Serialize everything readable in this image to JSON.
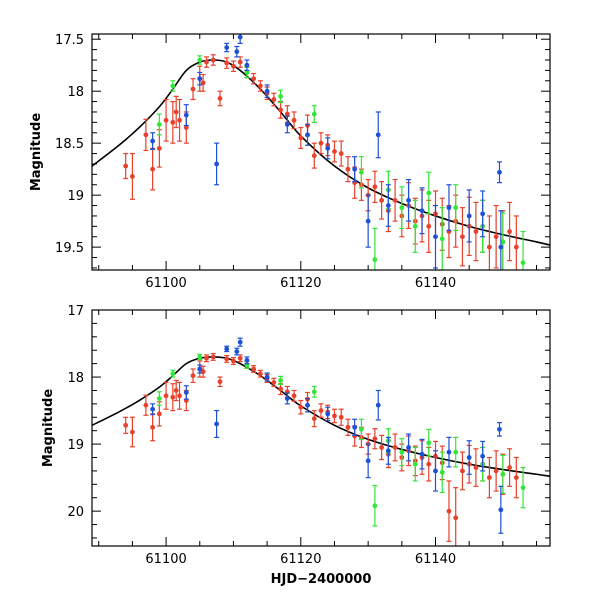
{
  "colors": {
    "red": "#e8412c",
    "green": "#33e63a",
    "blue": "#1f50d8",
    "model": "#000000"
  },
  "chart_data": [
    {
      "type": "scatter",
      "title": "",
      "xlabel": "",
      "ylabel": "Magnitude",
      "xlim": [
        61089,
        61157
      ],
      "ylim": [
        19.72,
        17.45
      ],
      "y_inverted": true,
      "xticks": [
        61100,
        61120,
        61140
      ],
      "xtick_labels": [
        "61100",
        "61120",
        "61140"
      ],
      "yticks": [
        17.5,
        18,
        18.5,
        19,
        19.5
      ],
      "ytick_labels": [
        "17.5",
        "18",
        "18.5",
        "19",
        "19.5"
      ],
      "model": {
        "name": "model fit",
        "x": [
          61089,
          61093,
          61096,
          61099,
          61101,
          61103,
          61105,
          61107,
          61109,
          61111,
          61114,
          61117,
          61120,
          61125,
          61130,
          61135,
          61140,
          61145,
          61150,
          61155,
          61157
        ],
        "y": [
          18.72,
          18.52,
          18.35,
          18.15,
          17.98,
          17.8,
          17.72,
          17.7,
          17.72,
          17.8,
          17.98,
          18.2,
          18.43,
          18.72,
          18.93,
          19.08,
          19.2,
          19.3,
          19.38,
          19.45,
          19.48
        ]
      },
      "series": [
        {
          "name": "red",
          "x": [
            61094,
            61095,
            61097,
            61098,
            61099,
            61100,
            61101,
            61101.5,
            61102,
            61103,
            61104,
            61105,
            61105.5,
            61106,
            61107,
            61108,
            61109,
            61110,
            61111,
            61112,
            61113,
            61114,
            61115,
            61116,
            61117,
            61118,
            61119,
            61120,
            61121,
            61122,
            61123,
            61124,
            61125,
            61126,
            61127,
            61128,
            61129,
            61130,
            61131,
            61132,
            61133,
            61134,
            61135,
            61136,
            61137,
            61138,
            61139,
            61140,
            61141,
            61142,
            61143,
            61144,
            61145,
            61146,
            61147,
            61148,
            61149,
            61150,
            61151,
            61152
          ],
          "y": [
            18.72,
            18.82,
            18.42,
            18.75,
            18.55,
            18.28,
            18.3,
            18.2,
            18.28,
            18.35,
            17.98,
            17.88,
            17.92,
            17.72,
            17.7,
            18.07,
            17.73,
            17.76,
            17.72,
            17.82,
            17.88,
            17.95,
            18.02,
            18.08,
            18.18,
            18.22,
            18.28,
            18.45,
            18.33,
            18.62,
            18.5,
            18.52,
            18.58,
            18.6,
            18.75,
            18.88,
            18.9,
            19.0,
            18.92,
            19.05,
            19.15,
            19.05,
            19.2,
            19.1,
            19.25,
            19.2,
            19.3,
            19.18,
            19.28,
            19.35,
            19.25,
            19.4,
            19.3,
            19.35,
            19.3,
            19.5,
            19.4,
            19.45,
            19.35,
            19.5
          ],
          "err": [
            0.12,
            0.22,
            0.15,
            0.2,
            0.18,
            0.2,
            0.2,
            0.15,
            0.2,
            0.15,
            0.1,
            0.12,
            0.08,
            0.05,
            0.05,
            0.07,
            0.05,
            0.05,
            0.05,
            0.05,
            0.05,
            0.05,
            0.06,
            0.06,
            0.08,
            0.08,
            0.08,
            0.1,
            0.1,
            0.12,
            0.1,
            0.1,
            0.1,
            0.12,
            0.12,
            0.15,
            0.15,
            0.15,
            0.15,
            0.18,
            0.2,
            0.2,
            0.2,
            0.22,
            0.22,
            0.25,
            0.25,
            0.22,
            0.25,
            0.25,
            0.25,
            0.28,
            0.28,
            0.28,
            0.25,
            0.3,
            0.3,
            0.3,
            0.28,
            0.3
          ]
        },
        {
          "name": "green",
          "x": [
            61099,
            61101,
            61105,
            61112,
            61117,
            61122,
            61129,
            61131,
            61133,
            61135,
            61137,
            61139,
            61141,
            61143,
            61147,
            61150,
            61153
          ],
          "y": [
            18.32,
            17.95,
            17.7,
            17.82,
            18.05,
            18.22,
            18.78,
            19.62,
            18.95,
            19.12,
            19.3,
            18.98,
            19.42,
            19.12,
            19.3,
            19.45,
            19.65
          ],
          "err": [
            0.1,
            0.05,
            0.04,
            0.05,
            0.06,
            0.08,
            0.15,
            0.3,
            0.18,
            0.2,
            0.25,
            0.2,
            0.3,
            0.22,
            0.25,
            0.28,
            0.3
          ]
        },
        {
          "name": "blue",
          "x": [
            61098,
            61103,
            61105,
            61107.5,
            61109,
            61110.5,
            61111,
            61112,
            61115,
            61118,
            61121,
            61124,
            61128,
            61130,
            61131.5,
            61133,
            61136,
            61138,
            61140,
            61142,
            61145,
            61147,
            61149.5,
            61149.7
          ],
          "y": [
            18.48,
            18.23,
            17.88,
            18.7,
            17.58,
            17.62,
            17.48,
            17.75,
            18.0,
            18.32,
            18.42,
            18.55,
            18.75,
            19.25,
            18.42,
            19.1,
            19.05,
            19.15,
            19.4,
            19.12,
            19.2,
            19.18,
            18.78,
            19.5
          ],
          "err": [
            0.08,
            0.1,
            0.06,
            0.2,
            0.04,
            0.05,
            0.06,
            0.05,
            0.06,
            0.08,
            0.1,
            0.1,
            0.12,
            0.25,
            0.22,
            0.2,
            0.2,
            0.22,
            0.3,
            0.22,
            0.25,
            0.22,
            0.1,
            0.35
          ]
        }
      ]
    },
    {
      "type": "scatter",
      "title": "",
      "xlabel": "HJD−2400000",
      "ylabel": "Magnitude",
      "xlim": [
        61089,
        61157
      ],
      "ylim": [
        20.52,
        17.0
      ],
      "y_inverted": true,
      "xticks": [
        61100,
        61120,
        61140
      ],
      "xtick_labels": [
        "61100",
        "61120",
        "61140"
      ],
      "yticks": [
        17,
        18,
        19,
        20
      ],
      "ytick_labels": [
        "17",
        "18",
        "19",
        "20"
      ],
      "model": {
        "name": "model fit",
        "x": [
          61089,
          61093,
          61096,
          61099,
          61101,
          61103,
          61105,
          61107,
          61109,
          61111,
          61114,
          61117,
          61120,
          61125,
          61130,
          61135,
          61140,
          61145,
          61150,
          61155,
          61157
        ],
        "y": [
          18.72,
          18.52,
          18.35,
          18.15,
          17.98,
          17.8,
          17.72,
          17.7,
          17.72,
          17.8,
          17.98,
          18.2,
          18.43,
          18.72,
          18.93,
          19.08,
          19.2,
          19.3,
          19.38,
          19.45,
          19.48
        ]
      },
      "series": [
        {
          "name": "red",
          "x": [
            61094,
            61095,
            61097,
            61098,
            61099,
            61100,
            61101,
            61101.5,
            61102,
            61103,
            61104,
            61105,
            61105.5,
            61106,
            61107,
            61108,
            61109,
            61110,
            61111,
            61112,
            61113,
            61114,
            61115,
            61116,
            61117,
            61118,
            61119,
            61120,
            61121,
            61122,
            61123,
            61124,
            61125,
            61126,
            61127,
            61128,
            61129,
            61130,
            61131,
            61132,
            61133,
            61134,
            61135,
            61136,
            61137,
            61138,
            61139,
            61140,
            61141,
            61142,
            61143,
            61144,
            61145,
            61146,
            61147,
            61148,
            61149,
            61150,
            61151,
            61152
          ],
          "y": [
            18.72,
            18.82,
            18.42,
            18.75,
            18.55,
            18.28,
            18.3,
            18.2,
            18.28,
            18.35,
            17.98,
            17.88,
            17.92,
            17.72,
            17.7,
            18.07,
            17.73,
            17.76,
            17.72,
            17.82,
            17.88,
            17.95,
            18.02,
            18.08,
            18.18,
            18.22,
            18.28,
            18.45,
            18.33,
            18.62,
            18.5,
            18.52,
            18.58,
            18.6,
            18.75,
            18.88,
            18.9,
            19.0,
            18.92,
            19.05,
            19.15,
            19.05,
            19.2,
            19.1,
            19.25,
            19.2,
            19.3,
            19.18,
            19.28,
            20.0,
            20.1,
            19.4,
            19.3,
            19.35,
            19.3,
            19.5,
            19.4,
            19.45,
            19.35,
            19.5
          ],
          "err": [
            0.12,
            0.22,
            0.15,
            0.2,
            0.18,
            0.2,
            0.2,
            0.15,
            0.2,
            0.15,
            0.1,
            0.12,
            0.08,
            0.05,
            0.05,
            0.07,
            0.05,
            0.05,
            0.05,
            0.05,
            0.05,
            0.05,
            0.06,
            0.06,
            0.08,
            0.08,
            0.08,
            0.1,
            0.1,
            0.12,
            0.1,
            0.1,
            0.1,
            0.12,
            0.12,
            0.15,
            0.15,
            0.15,
            0.15,
            0.18,
            0.2,
            0.2,
            0.2,
            0.22,
            0.22,
            0.25,
            0.25,
            0.22,
            0.25,
            0.45,
            0.45,
            0.28,
            0.28,
            0.28,
            0.25,
            0.3,
            0.3,
            0.3,
            0.28,
            0.3
          ]
        },
        {
          "name": "green",
          "x": [
            61099,
            61101,
            61105,
            61112,
            61117,
            61122,
            61129,
            61131,
            61133,
            61135,
            61137,
            61139,
            61141,
            61143,
            61147,
            61150,
            61153
          ],
          "y": [
            18.32,
            17.95,
            17.7,
            17.82,
            18.05,
            18.22,
            18.78,
            19.92,
            18.95,
            19.12,
            19.3,
            18.98,
            19.42,
            19.12,
            19.3,
            19.45,
            19.65
          ],
          "err": [
            0.1,
            0.05,
            0.04,
            0.05,
            0.06,
            0.08,
            0.15,
            0.3,
            0.18,
            0.2,
            0.25,
            0.2,
            0.3,
            0.22,
            0.25,
            0.28,
            0.3
          ]
        },
        {
          "name": "blue",
          "x": [
            61098,
            61103,
            61105,
            61107.5,
            61109,
            61110.5,
            61111,
            61112,
            61115,
            61118,
            61121,
            61124,
            61128,
            61130,
            61131.5,
            61133,
            61136,
            61138,
            61140,
            61142,
            61145,
            61147,
            61149.5,
            61149.7
          ],
          "y": [
            18.48,
            18.23,
            17.88,
            18.7,
            17.58,
            17.62,
            17.48,
            17.75,
            18.0,
            18.32,
            18.42,
            18.55,
            18.75,
            19.25,
            18.42,
            19.1,
            19.05,
            19.15,
            19.4,
            19.12,
            19.2,
            19.18,
            18.78,
            19.98
          ],
          "err": [
            0.08,
            0.1,
            0.06,
            0.2,
            0.04,
            0.05,
            0.06,
            0.05,
            0.06,
            0.08,
            0.1,
            0.1,
            0.12,
            0.25,
            0.22,
            0.2,
            0.2,
            0.22,
            0.3,
            0.22,
            0.25,
            0.22,
            0.1,
            0.35
          ]
        }
      ]
    }
  ]
}
